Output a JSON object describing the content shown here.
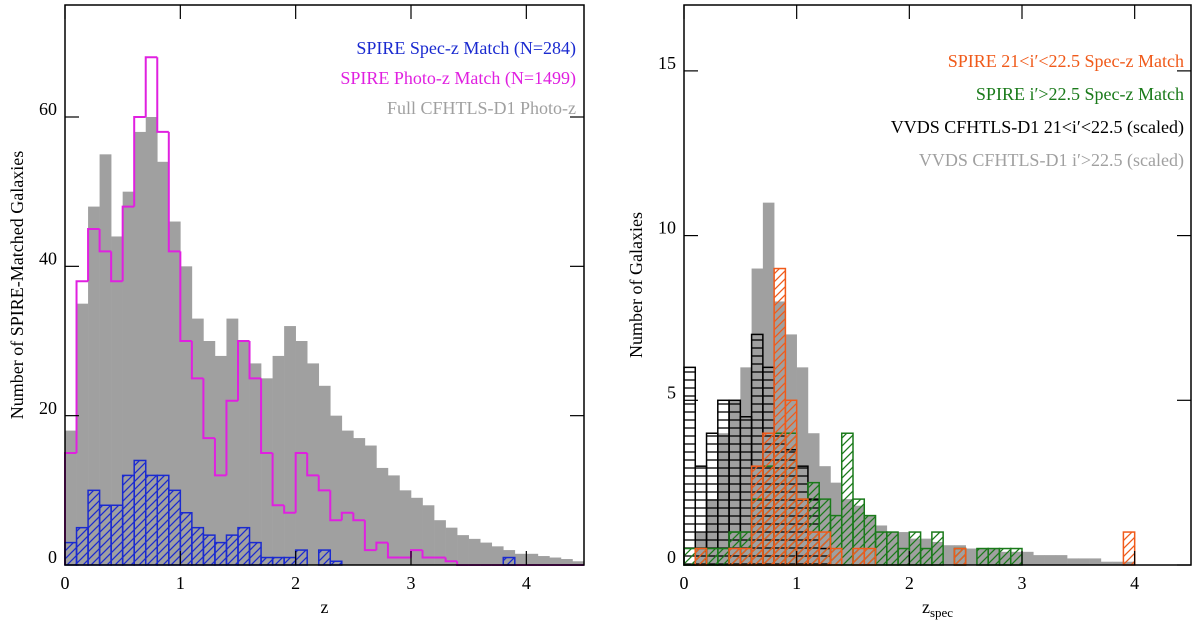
{
  "chart_data": [
    {
      "type": "histogram",
      "xlabel": "z",
      "ylabel": "Number of SPIRE-Matched Galaxies",
      "bins": [
        0,
        0.1,
        0.2,
        0.3,
        0.4,
        0.5,
        0.6,
        0.7,
        0.8,
        0.9,
        1,
        1.1,
        1.2,
        1.3,
        1.4,
        1.5,
        1.6,
        1.7,
        1.8,
        1.9,
        2,
        2.1,
        2.2,
        2.3,
        2.4,
        2.5,
        2.6,
        2.7,
        2.8,
        2.9,
        3,
        3.1,
        3.2,
        3.3,
        3.4,
        3.5,
        3.6,
        3.7,
        3.8,
        3.9,
        4,
        4.1,
        4.2,
        4.3,
        4.4,
        4.5
      ],
      "xlim": [
        0,
        4.5
      ],
      "ylim": [
        0,
        75
      ],
      "xticks": [
        0,
        1,
        2,
        3,
        4
      ],
      "yticks": [
        0,
        20,
        40,
        60
      ],
      "series": [
        {
          "name": "Full CFHTLS-D1 Photo-z",
          "color": "#a0a0a0",
          "style": "fill",
          "values": [
            18,
            35,
            48,
            55,
            44,
            50,
            58,
            60,
            54,
            46,
            40,
            33,
            30,
            28,
            33,
            30,
            27,
            25,
            28,
            32,
            30,
            27,
            24,
            20,
            18,
            17,
            16,
            13,
            12,
            10,
            9,
            8,
            6,
            5,
            4,
            3.5,
            3,
            2.5,
            2,
            1.5,
            1.5,
            1.2,
            1,
            0.8,
            0.5
          ]
        },
        {
          "name": "SPIRE Photo-z Match (N=1499)",
          "color": "#e020e0",
          "style": "step",
          "values": [
            15,
            38,
            45,
            42,
            38,
            48,
            60,
            68,
            58,
            42,
            30,
            25,
            17,
            12,
            22,
            30,
            25,
            15,
            8,
            7,
            15,
            12,
            10,
            6,
            7,
            6,
            2,
            3,
            1,
            1,
            2,
            1,
            1,
            0.5,
            0,
            0,
            0,
            0,
            0,
            0,
            0,
            0,
            0,
            0,
            0
          ]
        },
        {
          "name": "SPIRE Spec-z Match (N=284)",
          "color": "#1a2ad0",
          "style": "hatch",
          "hatch": "diagonal",
          "values": [
            3,
            5,
            10,
            8,
            8,
            12,
            14,
            12,
            12,
            10,
            7,
            5,
            4,
            3,
            4,
            5,
            3,
            1,
            1,
            1,
            2,
            0,
            2,
            0.5,
            0,
            0,
            0,
            0,
            0,
            0,
            0,
            0,
            0,
            0,
            0,
            0,
            0,
            0,
            1,
            0,
            0,
            0,
            0,
            0,
            0
          ]
        }
      ]
    },
    {
      "type": "histogram",
      "xlabel": "z",
      "xlabel_subscript": "spec",
      "ylabel": "Number of Galaxies",
      "bins": [
        0,
        0.1,
        0.2,
        0.3,
        0.4,
        0.5,
        0.6,
        0.7,
        0.8,
        0.9,
        1,
        1.1,
        1.2,
        1.3,
        1.4,
        1.5,
        1.6,
        1.7,
        1.8,
        1.9,
        2,
        2.1,
        2.2,
        2.3,
        2.4,
        2.5,
        2.6,
        2.7,
        2.8,
        2.9,
        3,
        3.1,
        3.2,
        3.3,
        3.4,
        3.5,
        3.6,
        3.7,
        3.8,
        3.9,
        4,
        4.1,
        4.2,
        4.3,
        4.4,
        4.5
      ],
      "xlim": [
        0,
        4.5
      ],
      "ylim": [
        0,
        17
      ],
      "xticks": [
        0,
        1,
        2,
        3,
        4
      ],
      "yticks": [
        0,
        5,
        10,
        15
      ],
      "series": [
        {
          "name": "VVDS CFHTLS-D1 i′>22.5 (scaled)",
          "color": "#a0a0a0",
          "style": "fill",
          "values": [
            0,
            1,
            2,
            4,
            5,
            6,
            9,
            11,
            8,
            7,
            6,
            4,
            3,
            2.5,
            2,
            1.8,
            1.5,
            1.2,
            1,
            1,
            0.8,
            0.8,
            0.7,
            0.6,
            0.6,
            0.5,
            0.5,
            0.5,
            0.4,
            0.4,
            0.4,
            0.3,
            0.3,
            0.3,
            0.2,
            0.2,
            0.2,
            0.1,
            0.1,
            0.1,
            0,
            0,
            0,
            0,
            0
          ]
        },
        {
          "name": "VVDS CFHTLS-D1 21<i′<22.5 (scaled)",
          "color": "#000000",
          "style": "hatch",
          "hatch": "horizontal",
          "values": [
            6,
            3,
            4,
            5,
            5,
            4.5,
            7,
            6,
            4,
            3.5,
            3,
            2,
            0.5,
            0,
            0,
            0,
            0,
            0,
            0,
            0,
            0,
            0,
            0,
            0,
            0,
            0,
            0,
            0,
            0,
            0,
            0,
            0,
            0,
            0,
            0,
            0,
            0,
            0,
            0,
            0,
            0,
            0,
            0,
            0,
            0
          ]
        },
        {
          "name": "SPIRE i′>22.5 Spec-z Match",
          "color": "#1a7a1a",
          "style": "hatch",
          "hatch": "diagonal",
          "values": [
            0.5,
            0.5,
            0.5,
            0.5,
            1,
            1,
            2,
            3,
            4,
            4,
            2,
            2.5,
            2,
            1.5,
            4,
            2,
            1.5,
            1,
            1,
            0.5,
            1,
            0.5,
            1,
            0,
            0.5,
            0,
            0.5,
            0.5,
            0.5,
            0.5,
            0,
            0,
            0,
            0,
            0,
            0,
            0,
            0,
            0,
            0,
            0,
            0,
            0,
            0,
            0
          ]
        },
        {
          "name": "SPIRE 21<i′<22.5 Spec-z Match",
          "color": "#f05a1a",
          "style": "hatch",
          "hatch": "diagonal",
          "values": [
            0,
            0.5,
            0,
            0,
            0.5,
            0.5,
            3,
            4,
            9,
            5,
            2,
            1,
            1,
            0.5,
            0,
            0.5,
            0.5,
            0,
            0,
            0,
            0,
            0,
            0,
            0,
            0.5,
            0,
            0,
            0,
            0,
            0,
            0,
            0,
            0,
            0,
            0,
            0,
            0,
            0,
            0,
            1,
            0,
            0,
            0,
            0,
            0
          ]
        }
      ]
    }
  ]
}
